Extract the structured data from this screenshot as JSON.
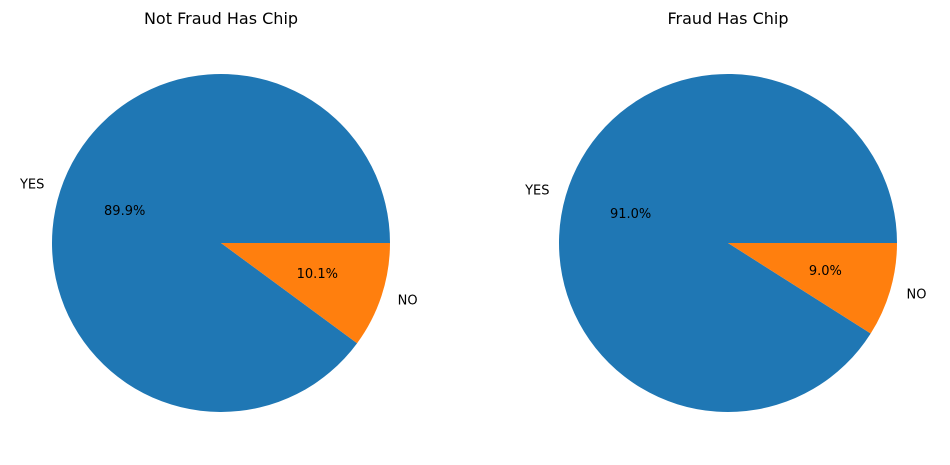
{
  "chart_data": [
    {
      "type": "pie",
      "title": "Not Fraud Has Chip",
      "categories": [
        "YES",
        "NO"
      ],
      "values": [
        89.9,
        10.1
      ],
      "value_labels": [
        "89.9%",
        "10.1%"
      ],
      "colors": [
        "#1f77b4",
        "#ff7f0e"
      ],
      "legend": "none"
    },
    {
      "type": "pie",
      "title": "Fraud Has Chip",
      "categories": [
        "YES",
        "NO"
      ],
      "values": [
        91.0,
        9.0
      ],
      "value_labels": [
        "91.0%",
        "9.0%"
      ],
      "colors": [
        "#1f77b4",
        "#ff7f0e"
      ],
      "legend": "none"
    }
  ]
}
